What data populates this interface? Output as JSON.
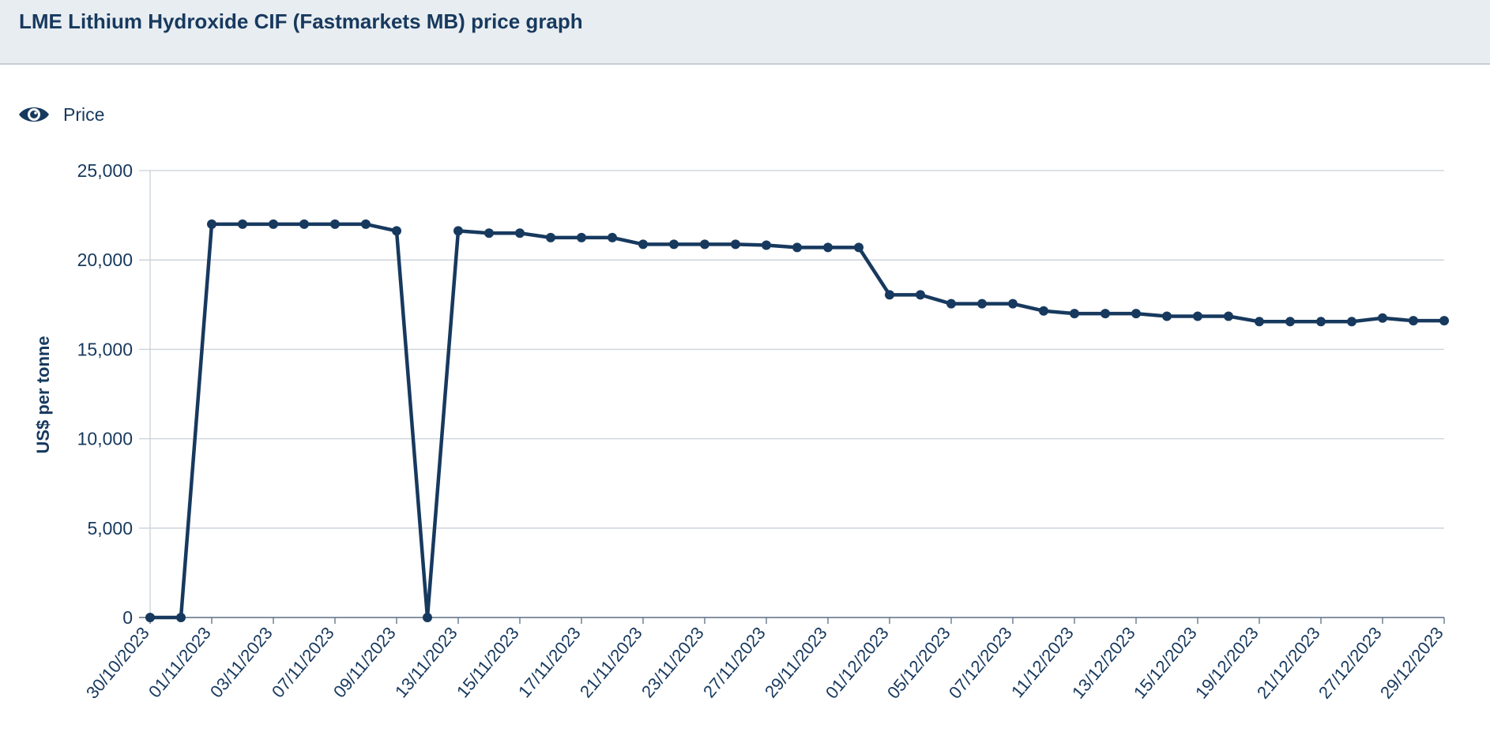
{
  "title": "LME Lithium Hydroxide CIF (Fastmarkets MB) price graph",
  "legend": {
    "label": "Price",
    "icon": "eye-icon"
  },
  "colors": {
    "series": "#17395e",
    "grid": "#c9d1d9",
    "header_bg": "#e8edf1"
  },
  "chart_data": {
    "type": "line",
    "title": "LME Lithium Hydroxide CIF (Fastmarkets MB) price graph",
    "ylabel": "US$ per tonne",
    "xlabel": "",
    "ylim": [
      0,
      25000
    ],
    "yticks": [
      0,
      5000,
      10000,
      15000,
      20000,
      25000
    ],
    "ytick_labels": [
      "0",
      "5,000",
      "10,000",
      "15,000",
      "20,000",
      "25,000"
    ],
    "grid": true,
    "x_tick_labels": [
      "30/10/2023",
      "01/11/2023",
      "03/11/2023",
      "07/11/2023",
      "09/11/2023",
      "13/11/2023",
      "15/11/2023",
      "17/11/2023",
      "21/11/2023",
      "23/11/2023",
      "27/11/2023",
      "29/11/2023",
      "01/12/2023",
      "05/12/2023",
      "07/12/2023",
      "11/12/2023",
      "13/12/2023",
      "15/12/2023",
      "19/12/2023",
      "21/12/2023",
      "27/12/2023",
      "29/12/2023"
    ],
    "series": [
      {
        "name": "Price",
        "values": [
          0,
          0,
          22000,
          22000,
          22000,
          22000,
          22000,
          22000,
          21625,
          0,
          21625,
          21500,
          21500,
          21250,
          21250,
          21250,
          20875,
          20875,
          20875,
          20875,
          20825,
          20700,
          20700,
          20700,
          18050,
          18050,
          17550,
          17550,
          17550,
          17150,
          17000,
          17000,
          17000,
          16850,
          16850,
          16850,
          16550,
          16550,
          16550,
          16550,
          16750,
          16600,
          16600
        ]
      }
    ]
  }
}
